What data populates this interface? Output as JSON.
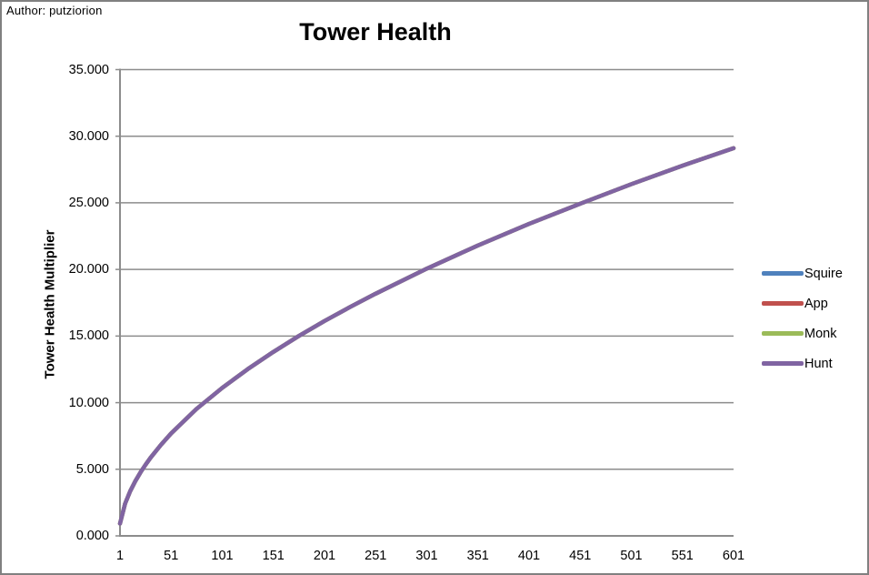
{
  "page": {
    "author_note": "Author: putziorion"
  },
  "chart_data": {
    "type": "line",
    "title": "Tower Health",
    "xlabel": "",
    "ylabel": "Tower Health Multiplier",
    "xlim": [
      1,
      601
    ],
    "ylim": [
      0,
      35
    ],
    "grid": true,
    "legend_position": "right",
    "x_tick_labels": [
      "1",
      "51",
      "101",
      "151",
      "201",
      "251",
      "301",
      "351",
      "401",
      "451",
      "501",
      "551",
      "601"
    ],
    "y_tick_labels": [
      "0.000",
      "5.000",
      "10.000",
      "15.000",
      "20.000",
      "25.000",
      "30.000",
      "35.000"
    ],
    "x": [
      1,
      6,
      11,
      16,
      21,
      26,
      31,
      41,
      51,
      76,
      101,
      126,
      151,
      176,
      201,
      226,
      251,
      301,
      351,
      401,
      451,
      501,
      551,
      601
    ],
    "series": [
      {
        "name": "Squire",
        "color": "#4F81BD",
        "values": [
          0.92,
          2.42,
          3.36,
          4.11,
          4.76,
          5.34,
          5.88,
          6.83,
          7.69,
          9.54,
          11.11,
          12.52,
          13.81,
          15.01,
          16.13,
          17.18,
          18.18,
          20.06,
          21.8,
          23.42,
          24.93,
          26.4,
          27.79,
          29.1
        ]
      },
      {
        "name": "App",
        "color": "#C0504D",
        "values": [
          0.92,
          2.42,
          3.36,
          4.11,
          4.76,
          5.34,
          5.88,
          6.83,
          7.69,
          9.54,
          11.11,
          12.52,
          13.81,
          15.01,
          16.13,
          17.18,
          18.18,
          20.06,
          21.8,
          23.42,
          24.93,
          26.4,
          27.79,
          29.1
        ]
      },
      {
        "name": "Monk",
        "color": "#9BBB59",
        "values": [
          0.92,
          2.42,
          3.36,
          4.11,
          4.76,
          5.34,
          5.88,
          6.83,
          7.69,
          9.54,
          11.11,
          12.52,
          13.81,
          15.01,
          16.13,
          17.18,
          18.18,
          20.06,
          21.8,
          23.42,
          24.93,
          26.4,
          27.79,
          29.1
        ]
      },
      {
        "name": "Hunt",
        "color": "#8064A2",
        "values": [
          0.92,
          2.42,
          3.36,
          4.11,
          4.76,
          5.34,
          5.88,
          6.83,
          7.69,
          9.54,
          11.11,
          12.52,
          13.81,
          15.01,
          16.13,
          17.18,
          18.18,
          20.06,
          21.8,
          23.42,
          24.93,
          26.4,
          27.79,
          29.1
        ]
      }
    ],
    "note": "All four series overlap exactly; only the last-drawn series (Hunt, purple) is visible as the curve."
  },
  "colors": {
    "frame": "#808080",
    "axis": "#8C8C8C",
    "grid": "#8C8C8C",
    "text": "#000000"
  }
}
